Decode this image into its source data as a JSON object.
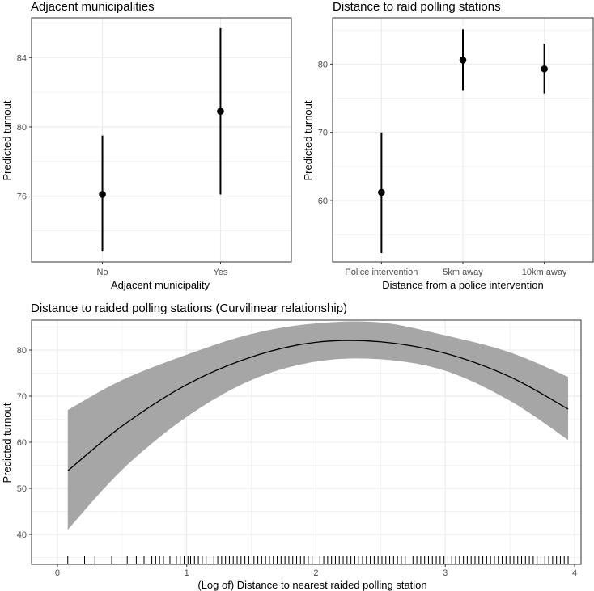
{
  "chart_data": [
    {
      "id": "p1",
      "type": "pointrange",
      "title": "Adjacent municipalities",
      "xlabel": "Adjacent municipality",
      "ylabel": "Predicted turnout",
      "categories": [
        "No",
        "Yes"
      ],
      "values": [
        76.1,
        80.9
      ],
      "lower": [
        72.8,
        76.1
      ],
      "upper": [
        79.5,
        85.7
      ],
      "ylim": [
        72.2,
        86.3
      ],
      "yticks": [
        76,
        80,
        84
      ],
      "grid": true
    },
    {
      "id": "p2",
      "type": "pointrange",
      "title": "Distance to raid polling stations",
      "xlabel": "Distance from a police intervention",
      "ylabel": "Predicted turnout",
      "categories": [
        "Police intervention",
        "5km away",
        "10km away"
      ],
      "values": [
        61.2,
        80.6,
        79.3
      ],
      "lower": [
        52.3,
        76.2,
        75.7
      ],
      "upper": [
        70.0,
        85.1,
        83.0
      ],
      "ylim": [
        51.0,
        86.8
      ],
      "yticks": [
        60,
        70,
        80
      ],
      "grid": true
    },
    {
      "id": "p3",
      "type": "line",
      "title": "Distance to raided polling stations (Curvilinear relationship)",
      "xlabel": "(Log of) Distance to nearest raided polling station",
      "ylabel": "Predicted turnout",
      "x": [
        0.08,
        0.5,
        1.0,
        1.5,
        2.0,
        2.5,
        3.0,
        3.5,
        3.95
      ],
      "y": [
        53.8,
        63.5,
        72.5,
        78.5,
        81.7,
        81.8,
        79.3,
        74.2,
        67.2
      ],
      "lower": [
        41.0,
        54.0,
        65.5,
        73.5,
        77.5,
        78.0,
        75.5,
        69.0,
        60.5
      ],
      "upper": [
        67.0,
        73.5,
        79.0,
        83.5,
        85.8,
        86.0,
        83.2,
        79.5,
        74.2
      ],
      "xlim": [
        -0.2,
        4.05
      ],
      "ylim": [
        33.5,
        86.5
      ],
      "xticks": [
        0,
        1,
        2,
        3,
        4
      ],
      "yticks": [
        40,
        50,
        60,
        70,
        80
      ],
      "rug": [
        0.08,
        0.21,
        0.29,
        0.42,
        0.54,
        0.61,
        0.67,
        0.73,
        0.76,
        0.79,
        0.82,
        0.87,
        0.92,
        0.95,
        0.98,
        1.01,
        1.03,
        1.06,
        1.09,
        1.12,
        1.15,
        1.18,
        1.21,
        1.24,
        1.27,
        1.3,
        1.33,
        1.36,
        1.39,
        1.42,
        1.45,
        1.48,
        1.52,
        1.55,
        1.58,
        1.61,
        1.64,
        1.67,
        1.7,
        1.73,
        1.76,
        1.79,
        1.82,
        1.85,
        1.88,
        1.91,
        1.94,
        1.97,
        2.0,
        2.03,
        2.06,
        2.09,
        2.12,
        2.15,
        2.18,
        2.21,
        2.24,
        2.27,
        2.3,
        2.33,
        2.36,
        2.39,
        2.42,
        2.45,
        2.48,
        2.51,
        2.54,
        2.57,
        2.6,
        2.63,
        2.66,
        2.69,
        2.72,
        2.75,
        2.78,
        2.81,
        2.84,
        2.87,
        2.9,
        2.93,
        2.96,
        2.99,
        3.02,
        3.05,
        3.08,
        3.11,
        3.14,
        3.17,
        3.2,
        3.23,
        3.26,
        3.29,
        3.32,
        3.35,
        3.38,
        3.41,
        3.44,
        3.47,
        3.5,
        3.53,
        3.56,
        3.59,
        3.62,
        3.65,
        3.68,
        3.71,
        3.74,
        3.77,
        3.8,
        3.83,
        3.86,
        3.89,
        3.92,
        3.95
      ],
      "grid": true
    }
  ]
}
